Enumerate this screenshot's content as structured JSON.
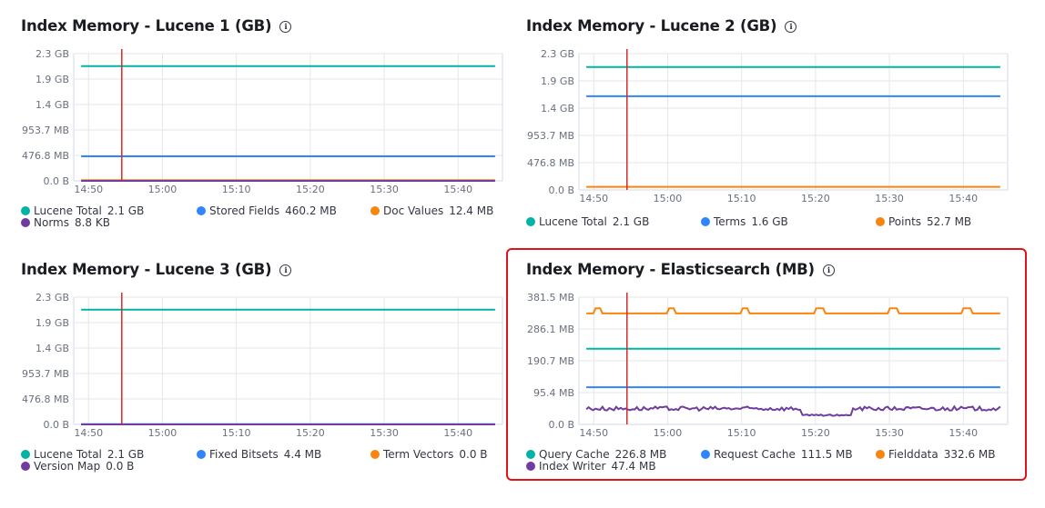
{
  "panels": [
    {
      "title": "Index Memory - Lucene 1 (GB)",
      "legend_rows": [
        [
          {
            "name": "Lucene Total",
            "value": "2.1 GB",
            "color": "#00b3a4"
          },
          {
            "name": "Stored Fields",
            "value": "460.2 MB",
            "color": "#3185fc"
          },
          {
            "name": "Doc Values",
            "value": "12.4 MB",
            "color": "#f98510"
          }
        ],
        [
          {
            "name": "Norms",
            "value": "8.8 KB",
            "color": "#6f3ca0"
          }
        ]
      ],
      "chart_data": {
        "type": "line",
        "y_ticks": [
          "0.0 B",
          "476.8 MB",
          "953.7 MB",
          "1.4 GB",
          "1.9 GB",
          "2.3 GB"
        ],
        "y_tick_gb": [
          0,
          0.4657,
          0.9313,
          1.397,
          1.8626,
          2.3283
        ],
        "ylim_gb": [
          0,
          2.3283
        ],
        "x_ticks": [
          "14:50",
          "15:00",
          "15:10",
          "15:20",
          "15:30",
          "15:40"
        ],
        "x_tick_min": [
          890,
          900,
          910,
          920,
          930,
          940
        ],
        "xlim_min": [
          888,
          946
        ],
        "cursor_time_min": 894.5,
        "series": [
          {
            "name": "Lucene Total",
            "color": "#00b3a4",
            "values_gb": [
              2.1
            ]
          },
          {
            "name": "Stored Fields",
            "color": "#3185fc",
            "values_gb": [
              0.4494
            ]
          },
          {
            "name": "Doc Values",
            "color": "#f98510",
            "values_gb": [
              0.0121
            ]
          },
          {
            "name": "Norms",
            "color": "#6f3ca0",
            "values_gb": [
              8.4e-06
            ]
          }
        ]
      }
    },
    {
      "title": "Index Memory - Lucene 2 (GB)",
      "legend_rows": [
        [
          {
            "name": "Lucene Total",
            "value": "2.1 GB",
            "color": "#00b3a4"
          },
          {
            "name": "Terms",
            "value": "1.6 GB",
            "color": "#3185fc"
          },
          {
            "name": "Points",
            "value": "52.7 MB",
            "color": "#f98510"
          }
        ]
      ],
      "chart_data": {
        "type": "line",
        "y_ticks": [
          "0.0 B",
          "476.8 MB",
          "953.7 MB",
          "1.4 GB",
          "1.9 GB",
          "2.3 GB"
        ],
        "y_tick_gb": [
          0,
          0.4657,
          0.9313,
          1.397,
          1.8626,
          2.3283
        ],
        "ylim_gb": [
          0,
          2.3283
        ],
        "x_ticks": [
          "14:50",
          "15:00",
          "15:10",
          "15:20",
          "15:30",
          "15:40"
        ],
        "x_tick_min": [
          890,
          900,
          910,
          920,
          930,
          940
        ],
        "xlim_min": [
          888,
          946
        ],
        "cursor_time_min": 894.5,
        "series": [
          {
            "name": "Lucene Total",
            "color": "#00b3a4",
            "values_gb": [
              2.1
            ]
          },
          {
            "name": "Terms",
            "color": "#3185fc",
            "values_gb": [
              1.6
            ]
          },
          {
            "name": "Points",
            "color": "#f98510",
            "values_gb": [
              0.0515
            ]
          }
        ]
      }
    },
    {
      "title": "Index Memory - Lucene 3 (GB)",
      "legend_rows": [
        [
          {
            "name": "Lucene Total",
            "value": "2.1 GB",
            "color": "#00b3a4"
          },
          {
            "name": "Fixed Bitsets",
            "value": "4.4 MB",
            "color": "#3185fc"
          },
          {
            "name": "Term Vectors",
            "value": "0.0 B",
            "color": "#f98510"
          }
        ],
        [
          {
            "name": "Version Map",
            "value": "0.0 B",
            "color": "#6f3ca0"
          }
        ]
      ],
      "chart_data": {
        "type": "line",
        "y_ticks": [
          "0.0 B",
          "476.8 MB",
          "953.7 MB",
          "1.4 GB",
          "1.9 GB",
          "2.3 GB"
        ],
        "y_tick_gb": [
          0,
          0.4657,
          0.9313,
          1.397,
          1.8626,
          2.3283
        ],
        "ylim_gb": [
          0,
          2.3283
        ],
        "x_ticks": [
          "14:50",
          "15:00",
          "15:10",
          "15:20",
          "15:30",
          "15:40"
        ],
        "x_tick_min": [
          890,
          900,
          910,
          920,
          930,
          940
        ],
        "xlim_min": [
          888,
          946
        ],
        "cursor_time_min": 894.5,
        "series": [
          {
            "name": "Lucene Total",
            "color": "#00b3a4",
            "values_gb": [
              2.1
            ]
          },
          {
            "name": "Fixed Bitsets",
            "color": "#3185fc",
            "values_gb": [
              0.0043
            ]
          },
          {
            "name": "Term Vectors",
            "color": "#f98510",
            "values_gb": [
              0
            ]
          },
          {
            "name": "Version Map",
            "color": "#6f3ca0",
            "values_gb": [
              0
            ]
          }
        ]
      }
    },
    {
      "title": "Index Memory - Elasticsearch (MB)",
      "legend_rows": [
        [
          {
            "name": "Query Cache",
            "value": "226.8 MB",
            "color": "#00b3a4"
          },
          {
            "name": "Request Cache",
            "value": "111.5 MB",
            "color": "#3185fc"
          },
          {
            "name": "Fielddata",
            "value": "332.6 MB",
            "color": "#f98510"
          }
        ],
        [
          {
            "name": "Index Writer",
            "value": "47.4 MB",
            "color": "#6f3ca0"
          }
        ]
      ],
      "chart_data": {
        "type": "line",
        "y_ticks": [
          "0.0 B",
          "95.4 MB",
          "190.7 MB",
          "286.1 MB",
          "381.5 MB"
        ],
        "y_tick_gb": [
          0,
          0.0931,
          0.1863,
          0.2794,
          0.3725
        ],
        "ylim_gb": [
          0,
          0.3725
        ],
        "x_ticks": [
          "14:50",
          "15:00",
          "15:10",
          "15:20",
          "15:30",
          "15:40"
        ],
        "x_tick_min": [
          890,
          900,
          910,
          920,
          930,
          940
        ],
        "xlim_min": [
          888,
          946
        ],
        "cursor_time_min": 894.5,
        "series": [
          {
            "name": "Query Cache",
            "color": "#00b3a4",
            "values_gb": [
              0.2215
            ]
          },
          {
            "name": "Request Cache",
            "color": "#3185fc",
            "values_gb": [
              0.1089
            ]
          },
          {
            "name": "Fielddata",
            "color": "#f98510",
            "values_gb": [
              0.3248
            ],
            "spikes_min": [
              890.5,
              900.5,
              910.5,
              920.5,
              930.5,
              940.5
            ],
            "spike_gb": 0.3398
          },
          {
            "name": "Index Writer",
            "color": "#6f3ca0",
            "values_gb": [
              0.0463
            ],
            "dip_range_min": [
              918,
              925
            ],
            "dip_gb": 0.0268
          }
        ]
      }
    }
  ]
}
